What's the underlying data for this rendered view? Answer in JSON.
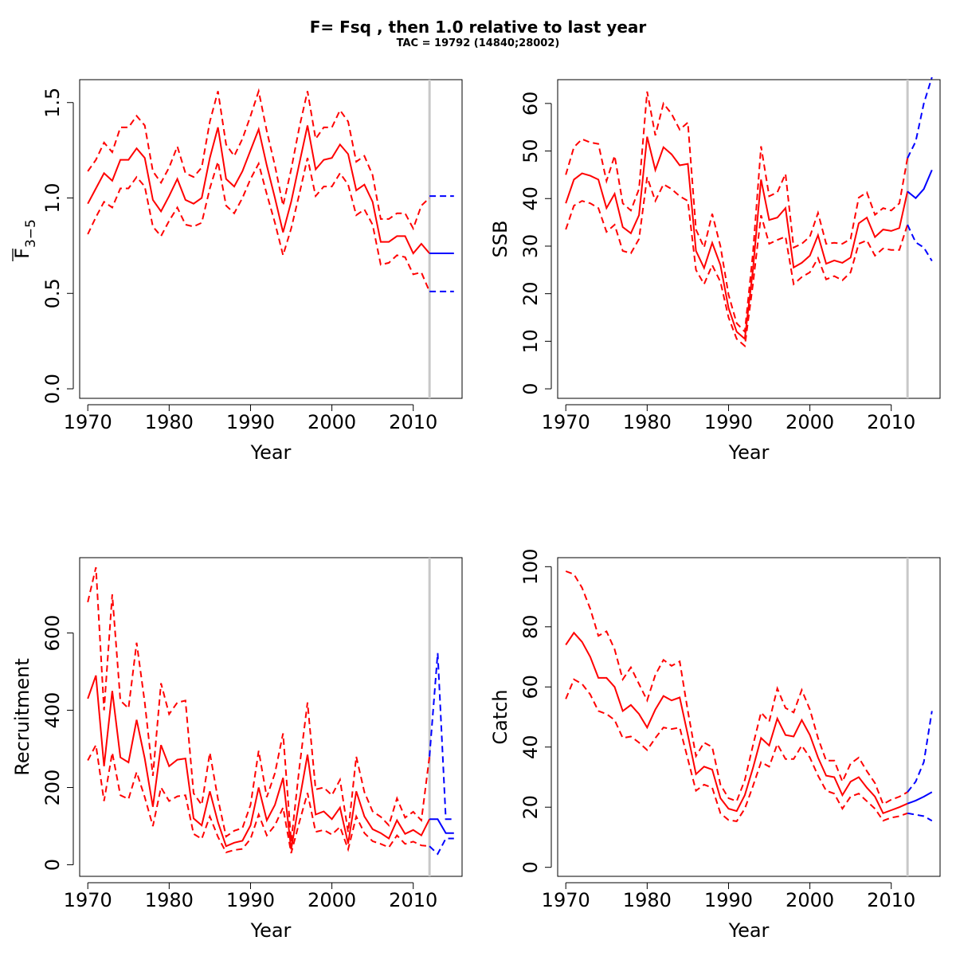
{
  "title": "F= Fsq , then 1.0  relative to last year",
  "subtitle": "TAC = 19792 (14840;28002)",
  "colors": {
    "history": "#ff0000",
    "projection": "#0000ff",
    "divider": "#c8c8c8"
  },
  "chart_data": [
    {
      "type": "line",
      "xlabel": "Year",
      "ylabel_main": "F",
      "ylabel_sub": "3−5",
      "xlim": [
        1969,
        2016
      ],
      "ylim": [
        -0.05,
        1.62
      ],
      "xticks": [
        1970,
        1980,
        1990,
        2000,
        2010
      ],
      "yticks": [
        "0.0",
        "0.5",
        "1.0",
        "1.5"
      ],
      "divider_x": 2012,
      "history": {
        "x": [
          1970,
          1971,
          1972,
          1973,
          1974,
          1975,
          1976,
          1977,
          1978,
          1979,
          1980,
          1981,
          1982,
          1983,
          1984,
          1985,
          1986,
          1987,
          1988,
          1989,
          1990,
          1991,
          1992,
          1993,
          1994,
          1995,
          1996,
          1997,
          1998,
          1999,
          2000,
          2001,
          2002,
          2003,
          2004,
          2005,
          2006,
          2007,
          2008,
          2009,
          2010,
          2011,
          2012
        ],
        "mid": [
          0.97,
          1.05,
          1.13,
          1.09,
          1.2,
          1.2,
          1.26,
          1.21,
          0.99,
          0.93,
          1.01,
          1.1,
          0.99,
          0.97,
          1.0,
          1.21,
          1.37,
          1.1,
          1.06,
          1.14,
          1.25,
          1.36,
          1.17,
          1.0,
          0.82,
          0.98,
          1.18,
          1.38,
          1.15,
          1.2,
          1.21,
          1.28,
          1.23,
          1.04,
          1.07,
          0.98,
          0.77,
          0.77,
          0.8,
          0.8,
          0.71,
          0.76,
          0.71
        ],
        "upper": [
          1.14,
          1.2,
          1.29,
          1.24,
          1.37,
          1.37,
          1.43,
          1.38,
          1.14,
          1.08,
          1.16,
          1.27,
          1.13,
          1.11,
          1.16,
          1.4,
          1.56,
          1.28,
          1.22,
          1.31,
          1.43,
          1.56,
          1.35,
          1.17,
          0.96,
          1.15,
          1.37,
          1.56,
          1.31,
          1.37,
          1.37,
          1.46,
          1.4,
          1.19,
          1.22,
          1.12,
          0.89,
          0.89,
          0.92,
          0.92,
          0.84,
          0.96,
          1.0
        ],
        "lower": [
          0.81,
          0.9,
          0.98,
          0.95,
          1.05,
          1.05,
          1.11,
          1.06,
          0.85,
          0.8,
          0.88,
          0.95,
          0.86,
          0.85,
          0.87,
          1.05,
          1.19,
          0.96,
          0.92,
          1.0,
          1.1,
          1.18,
          1.02,
          0.87,
          0.7,
          0.84,
          1.02,
          1.21,
          1.01,
          1.06,
          1.06,
          1.13,
          1.07,
          0.91,
          0.94,
          0.86,
          0.65,
          0.66,
          0.7,
          0.69,
          0.6,
          0.61,
          0.51
        ]
      },
      "projection": {
        "x": [
          2012,
          2013,
          2014,
          2015
        ],
        "mid": [
          0.71,
          0.71,
          0.71,
          0.71
        ],
        "upper": [
          1.01,
          1.01,
          1.01,
          1.01
        ],
        "lower": [
          0.51,
          0.51,
          0.51,
          0.51
        ]
      }
    },
    {
      "type": "line",
      "xlabel": "Year",
      "ylabel_main": "SSB",
      "ylabel_sub": "",
      "xlim": [
        1969,
        2016
      ],
      "ylim": [
        -2,
        65
      ],
      "xticks": [
        1970,
        1980,
        1990,
        2000,
        2010
      ],
      "yticks": [
        "0",
        "10",
        "20",
        "30",
        "40",
        "50",
        "60"
      ],
      "divider_x": 2012,
      "history": {
        "x": [
          1970,
          1971,
          1972,
          1973,
          1974,
          1975,
          1976,
          1977,
          1978,
          1979,
          1980,
          1981,
          1982,
          1983,
          1984,
          1985,
          1986,
          1987,
          1988,
          1989,
          1990,
          1991,
          1992,
          1993,
          1994,
          1995,
          1996,
          1997,
          1998,
          1999,
          2000,
          2001,
          2002,
          2003,
          2004,
          2005,
          2006,
          2007,
          2008,
          2009,
          2010,
          2011,
          2012
        ],
        "mid": [
          39,
          44,
          45.3,
          44.8,
          44,
          38,
          41,
          34,
          32.7,
          36.5,
          53,
          46,
          50.8,
          49.3,
          47,
          47.3,
          29,
          25.4,
          30.7,
          26,
          17,
          12,
          10.5,
          25,
          44,
          35.5,
          36,
          38,
          25.5,
          26.5,
          28,
          32.3,
          26.3,
          27,
          26.5,
          27.6,
          34.8,
          36,
          31.9,
          33.5,
          33.2,
          33.8,
          41.5
        ],
        "upper": [
          45,
          50.8,
          52.5,
          51.8,
          51.5,
          43.7,
          49,
          39,
          37.5,
          42,
          62.5,
          53.3,
          60,
          57.8,
          54.5,
          56,
          33.5,
          29.7,
          36.8,
          30,
          19.8,
          13.8,
          12,
          28.5,
          51,
          40.5,
          41.3,
          45.2,
          29.7,
          30.5,
          32,
          37,
          30.5,
          30.7,
          30.5,
          31.5,
          40.2,
          41.3,
          36.6,
          38,
          37.5,
          39,
          48.5
        ],
        "lower": [
          33.5,
          38.5,
          39.5,
          39,
          38,
          33,
          34.5,
          29,
          28.5,
          31.5,
          44.5,
          39.5,
          43,
          42,
          40.5,
          39.5,
          25,
          22,
          26,
          22.5,
          15,
          10.5,
          9,
          22,
          36.5,
          30.5,
          31.3,
          32,
          22,
          23.5,
          24.5,
          27.5,
          23,
          23.7,
          22.8,
          24.5,
          30.5,
          31.2,
          28,
          29.5,
          29.2,
          29.2,
          34.5
        ]
      },
      "projection": {
        "x": [
          2012,
          2013,
          2014,
          2015
        ],
        "mid": [
          41.5,
          40.1,
          42,
          46
        ],
        "upper": [
          48.5,
          52,
          60,
          65.5
        ],
        "lower": [
          34.5,
          30.8,
          29.7,
          26.9
        ]
      }
    },
    {
      "type": "line",
      "xlabel": "Year",
      "ylabel_main": "Recruitment",
      "ylabel_sub": "",
      "xlim": [
        1969,
        2016
      ],
      "ylim": [
        -30,
        795
      ],
      "xticks": [
        1970,
        1980,
        1990,
        2000,
        2010
      ],
      "yticks": [
        "0",
        "200",
        "400",
        "600"
      ],
      "divider_x": 2012,
      "history": {
        "x": [
          1970,
          1971,
          1972,
          1973,
          1974,
          1975,
          1976,
          1977,
          1978,
          1979,
          1980,
          1981,
          1982,
          1983,
          1984,
          1985,
          1986,
          1987,
          1988,
          1989,
          1990,
          1991,
          1992,
          1993,
          1994,
          1995,
          1996,
          1997,
          1998,
          1999,
          2000,
          2001,
          2002,
          2003,
          2004,
          2005,
          2006,
          2007,
          2008,
          2009,
          2010,
          2011,
          2012
        ],
        "mid": [
          430,
          490,
          255,
          450,
          278,
          265,
          375,
          275,
          150,
          310,
          255,
          272,
          275,
          120,
          102,
          190,
          110,
          48,
          57,
          62,
          102,
          200,
          115,
          155,
          225,
          40,
          165,
          285,
          130,
          138,
          118,
          148,
          55,
          190,
          125,
          92,
          82,
          68,
          115,
          80,
          90,
          76,
          118
        ],
        "upper": [
          680,
          770,
          400,
          700,
          425,
          405,
          575,
          420,
          230,
          470,
          390,
          420,
          425,
          185,
          155,
          290,
          170,
          73,
          88,
          95,
          155,
          295,
          175,
          237,
          340,
          60,
          250,
          420,
          195,
          200,
          180,
          220,
          84,
          280,
          188,
          138,
          124,
          102,
          172,
          122,
          137,
          115,
          280
        ],
        "lower": [
          270,
          310,
          165,
          290,
          180,
          170,
          240,
          175,
          100,
          200,
          165,
          177,
          180,
          80,
          67,
          125,
          72,
          32,
          38,
          41,
          67,
          130,
          76,
          102,
          148,
          30,
          110,
          186,
          85,
          90,
          78,
          98,
          40,
          125,
          82,
          61,
          54,
          45,
          76,
          54,
          60,
          50,
          48
        ]
      },
      "projection": {
        "x": [
          2012,
          2013,
          2014,
          2015
        ],
        "mid": [
          118,
          118,
          82,
          82
        ],
        "upper": [
          280,
          548,
          118,
          118
        ],
        "lower": [
          48,
          28,
          68,
          68
        ]
      }
    },
    {
      "type": "line",
      "xlabel": "Year",
      "ylabel_main": "Catch",
      "ylabel_sub": "",
      "xlim": [
        1969,
        2016
      ],
      "ylim": [
        -3,
        103
      ],
      "xticks": [
        1970,
        1980,
        1990,
        2000,
        2010
      ],
      "yticks": [
        "0",
        "20",
        "40",
        "60",
        "80",
        "100"
      ],
      "divider_x": 2012,
      "history": {
        "x": [
          1970,
          1971,
          1972,
          1973,
          1974,
          1975,
          1976,
          1977,
          1978,
          1979,
          1980,
          1981,
          1982,
          1983,
          1984,
          1985,
          1986,
          1987,
          1988,
          1989,
          1990,
          1991,
          1992,
          1993,
          1994,
          1995,
          1996,
          1997,
          1998,
          1999,
          2000,
          2001,
          2002,
          2003,
          2004,
          2005,
          2006,
          2007,
          2008,
          2009,
          2010,
          2011,
          2012
        ],
        "mid": [
          74,
          78,
          75,
          70,
          63,
          63,
          60,
          52,
          54,
          51,
          46.5,
          52.5,
          57,
          55.5,
          56.5,
          44,
          31,
          33.5,
          32.5,
          23,
          19.5,
          18.7,
          24,
          33,
          43,
          40.5,
          49.5,
          44,
          43.5,
          49,
          44,
          36.5,
          30.5,
          30,
          24,
          28.5,
          30,
          26.5,
          23.5,
          18,
          19,
          20,
          21.2
        ],
        "upper": [
          98.5,
          97.5,
          93,
          86,
          77,
          78.5,
          72.5,
          62.5,
          66.5,
          61,
          55.5,
          64,
          69,
          67,
          68.5,
          52,
          37,
          41.5,
          40,
          27.5,
          23,
          22,
          29,
          40.5,
          51.5,
          48.5,
          59.5,
          53,
          51.5,
          59,
          52.5,
          43,
          35.5,
          35.5,
          28.5,
          34.5,
          36.5,
          32,
          28,
          21,
          22.5,
          23.5,
          25
        ],
        "lower": [
          56,
          62.5,
          61,
          57.5,
          52,
          51,
          49,
          43,
          43.5,
          41.5,
          39,
          43,
          46.5,
          46,
          46.5,
          36,
          25.5,
          27.5,
          26.5,
          18,
          15.7,
          15.3,
          19.5,
          27,
          35,
          33.5,
          41,
          36,
          36,
          40.5,
          36.5,
          30.5,
          25.5,
          24.5,
          19.5,
          23.5,
          24.5,
          22,
          19.5,
          15.5,
          16.5,
          17,
          18
        ]
      },
      "projection": {
        "x": [
          2012,
          2013,
          2014,
          2015
        ],
        "mid": [
          21.2,
          22.2,
          23.5,
          25
        ],
        "upper": [
          25,
          28.5,
          35,
          52
        ],
        "lower": [
          18,
          17.5,
          17,
          15.5
        ]
      }
    }
  ]
}
